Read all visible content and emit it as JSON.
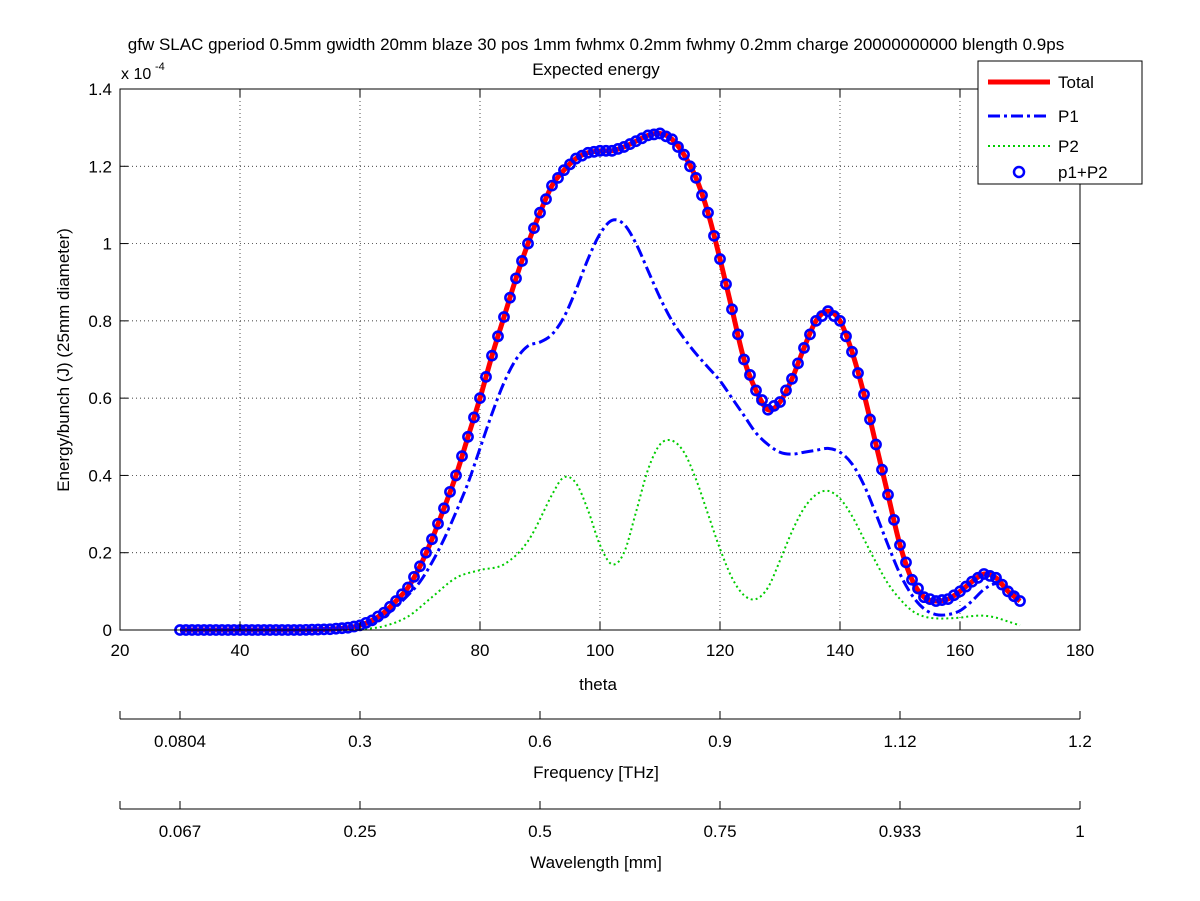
{
  "chart_data": {
    "type": "line",
    "title_line1": "gfw SLAC gperiod 0.5mm gwidth 20mm blaze 30 pos 1mm fwhmx 0.2mm fwhmy 0.2mm charge 20000000000 blength 0.9ps",
    "title_line2": "Expected energy",
    "xlabel": "theta",
    "ylabel": "Energy/bunch (J) (25mm diameter)",
    "y_exponent_base": "x 10",
    "y_exponent": "-4",
    "xlim": [
      20,
      180
    ],
    "ylim": [
      0,
      1.4
    ],
    "x_ticks": [
      "20",
      "40",
      "60",
      "80",
      "100",
      "120",
      "140",
      "160",
      "180"
    ],
    "y_ticks": [
      "0",
      "0.2",
      "0.4",
      "0.6",
      "0.8",
      "1",
      "1.2",
      "1.4"
    ],
    "grid": true,
    "legend_position": "top-right",
    "series": [
      {
        "name": "Total",
        "style": "solid",
        "color": "#ff0000",
        "x": [
          30,
          40,
          50,
          55,
          58,
          60,
          62,
          64,
          66,
          68,
          70,
          72,
          74,
          76,
          78,
          80,
          82,
          84,
          86,
          88,
          90,
          92,
          94,
          96,
          98,
          100,
          102,
          104,
          106,
          108,
          110,
          112,
          114,
          116,
          118,
          120,
          122,
          124,
          126,
          128,
          130,
          132,
          134,
          136,
          138,
          140,
          142,
          144,
          146,
          148,
          150,
          152,
          154,
          156,
          158,
          160,
          162,
          164,
          166,
          168,
          170
        ],
        "y": [
          0,
          0,
          0,
          0.002,
          0.006,
          0.012,
          0.025,
          0.045,
          0.075,
          0.11,
          0.165,
          0.235,
          0.315,
          0.4,
          0.5,
          0.6,
          0.71,
          0.81,
          0.91,
          1.0,
          1.08,
          1.15,
          1.19,
          1.22,
          1.235,
          1.24,
          1.24,
          1.25,
          1.265,
          1.28,
          1.285,
          1.27,
          1.23,
          1.17,
          1.08,
          0.96,
          0.83,
          0.7,
          0.62,
          0.57,
          0.59,
          0.65,
          0.73,
          0.8,
          0.825,
          0.8,
          0.72,
          0.61,
          0.48,
          0.35,
          0.22,
          0.13,
          0.085,
          0.075,
          0.08,
          0.1,
          0.125,
          0.145,
          0.135,
          0.1,
          0.075
        ]
      },
      {
        "name": "P1",
        "style": "dashdot",
        "color": "#0000ff",
        "x": [
          30,
          40,
          50,
          55,
          58,
          60,
          62,
          64,
          66,
          68,
          70,
          72,
          74,
          76,
          78,
          80,
          82,
          84,
          86,
          88,
          90,
          92,
          94,
          96,
          98,
          100,
          102,
          104,
          106,
          108,
          110,
          112,
          114,
          116,
          118,
          120,
          122,
          124,
          126,
          128,
          130,
          132,
          134,
          136,
          138,
          140,
          142,
          144,
          146,
          148,
          150,
          152,
          154,
          156,
          158,
          160,
          162,
          164,
          166,
          168,
          170
        ],
        "y": [
          0,
          0,
          0,
          0.002,
          0.005,
          0.01,
          0.02,
          0.035,
          0.06,
          0.09,
          0.125,
          0.175,
          0.235,
          0.305,
          0.38,
          0.47,
          0.56,
          0.64,
          0.7,
          0.735,
          0.745,
          0.765,
          0.81,
          0.88,
          0.96,
          1.025,
          1.06,
          1.05,
          1.0,
          0.93,
          0.86,
          0.8,
          0.755,
          0.715,
          0.68,
          0.645,
          0.6,
          0.555,
          0.51,
          0.48,
          0.46,
          0.455,
          0.46,
          0.465,
          0.47,
          0.46,
          0.43,
          0.375,
          0.3,
          0.22,
          0.145,
          0.09,
          0.055,
          0.04,
          0.04,
          0.05,
          0.075,
          0.105,
          0.12,
          0.11,
          0.075
        ]
      },
      {
        "name": "P2",
        "style": "dotted",
        "color": "#00cc00",
        "x": [
          30,
          40,
          50,
          55,
          60,
          64,
          68,
          72,
          76,
          80,
          84,
          88,
          92,
          94,
          96,
          98,
          100,
          102,
          104,
          106,
          108,
          110,
          112,
          114,
          116,
          118,
          120,
          122,
          124,
          126,
          128,
          130,
          132,
          134,
          136,
          138,
          140,
          142,
          144,
          146,
          148,
          150,
          152,
          154,
          156,
          158,
          160,
          162,
          164,
          166,
          168,
          170
        ],
        "y": [
          0,
          0,
          0,
          0,
          0.002,
          0.01,
          0.035,
          0.085,
          0.135,
          0.155,
          0.17,
          0.23,
          0.35,
          0.395,
          0.38,
          0.31,
          0.22,
          0.17,
          0.2,
          0.305,
          0.415,
          0.48,
          0.49,
          0.46,
          0.39,
          0.3,
          0.21,
          0.135,
          0.09,
          0.08,
          0.11,
          0.18,
          0.255,
          0.315,
          0.35,
          0.36,
          0.34,
          0.295,
          0.235,
          0.175,
          0.12,
          0.08,
          0.05,
          0.035,
          0.03,
          0.03,
          0.032,
          0.036,
          0.037,
          0.032,
          0.022,
          0.012
        ]
      },
      {
        "name": "p1+P2",
        "style": "markers",
        "color": "#0000ff"
      }
    ],
    "secondary_axes": [
      {
        "label": "Frequency [THz]",
        "ticks": [
          {
            "theta": 20,
            "label": ""
          },
          {
            "theta": 30,
            "label": "0.0804"
          },
          {
            "theta": 60,
            "label": "0.3"
          },
          {
            "theta": 90,
            "label": "0.6"
          },
          {
            "theta": 120,
            "label": "0.9"
          },
          {
            "theta": 150,
            "label": "1.12"
          },
          {
            "theta": 180,
            "label": "1.2"
          }
        ]
      },
      {
        "label": "Wavelength [mm]",
        "ticks": [
          {
            "theta": 20,
            "label": ""
          },
          {
            "theta": 30,
            "label": "0.067"
          },
          {
            "theta": 60,
            "label": "0.25"
          },
          {
            "theta": 90,
            "label": "0.5"
          },
          {
            "theta": 120,
            "label": "0.75"
          },
          {
            "theta": 150,
            "label": "0.933"
          },
          {
            "theta": 180,
            "label": "1"
          }
        ]
      }
    ]
  }
}
